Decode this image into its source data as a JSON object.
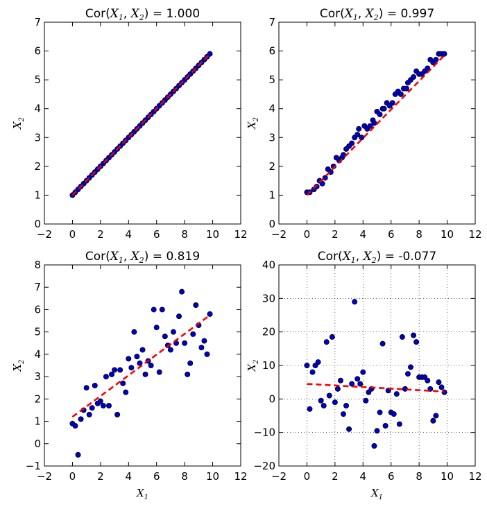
{
  "chart_data": [
    {
      "type": "scatter",
      "title_prefix": "Cor(",
      "title_var1": "X",
      "title_sub1": "1",
      "title_sep": ", ",
      "title_var2": "X",
      "title_sub2": "2",
      "title_suffix": ") = 1.000",
      "xlabel": "",
      "xlabel_sub": "",
      "ylabel": "X",
      "ylabel_sub": "2",
      "xlim": [
        -2,
        12
      ],
      "ylim": [
        0,
        7
      ],
      "xticks": [
        -2,
        0,
        2,
        4,
        6,
        8,
        10,
        12
      ],
      "yticks": [
        0,
        1,
        2,
        3,
        4,
        5,
        6,
        7
      ],
      "grid": false,
      "points": {
        "x": [
          0.0,
          0.2,
          0.4,
          0.6,
          0.8,
          1.0,
          1.2,
          1.4,
          1.6,
          1.8,
          2.0,
          2.2,
          2.4,
          2.6,
          2.8,
          3.0,
          3.2,
          3.4,
          3.6,
          3.8,
          4.0,
          4.2,
          4.4,
          4.6,
          4.8,
          5.0,
          5.2,
          5.4,
          5.6,
          5.8,
          6.0,
          6.2,
          6.4,
          6.6,
          6.8,
          7.0,
          7.2,
          7.4,
          7.6,
          7.8,
          8.0,
          8.2,
          8.4,
          8.6,
          8.8,
          9.0,
          9.2,
          9.4,
          9.6,
          9.8
        ],
        "y": [
          1.0,
          1.1,
          1.2,
          1.3,
          1.4,
          1.5,
          1.6,
          1.7,
          1.8,
          1.9,
          2.0,
          2.1,
          2.2,
          2.3,
          2.4,
          2.5,
          2.6,
          2.7,
          2.8,
          2.9,
          3.0,
          3.1,
          3.2,
          3.3,
          3.4,
          3.5,
          3.6,
          3.7,
          3.8,
          3.9,
          4.0,
          4.1,
          4.2,
          4.3,
          4.4,
          4.5,
          4.6,
          4.7,
          4.8,
          4.9,
          5.0,
          5.1,
          5.2,
          5.3,
          5.4,
          5.5,
          5.6,
          5.7,
          5.8,
          5.9
        ]
      },
      "fit_line": {
        "x": [
          0,
          9.8
        ],
        "y": [
          1.0,
          5.9
        ]
      },
      "marker_color": "#0000cc",
      "line_color": "#ff0000"
    },
    {
      "type": "scatter",
      "title_prefix": "Cor(",
      "title_var1": "X",
      "title_sub1": "1",
      "title_sep": ", ",
      "title_var2": "X",
      "title_sub2": "2",
      "title_suffix": ") = 0.997",
      "xlabel": "",
      "xlabel_sub": "",
      "ylabel": "X",
      "ylabel_sub": "2",
      "xlim": [
        -2,
        12
      ],
      "ylim": [
        0,
        7
      ],
      "xticks": [
        -2,
        0,
        2,
        4,
        6,
        8,
        10,
        12
      ],
      "yticks": [
        0,
        1,
        2,
        3,
        4,
        5,
        6,
        7
      ],
      "grid": false,
      "points": {
        "x": [
          0.0,
          0.2,
          0.5,
          0.7,
          0.9,
          1.1,
          1.3,
          1.5,
          1.7,
          1.9,
          2.1,
          2.3,
          2.5,
          2.6,
          2.8,
          3.0,
          3.2,
          3.4,
          3.6,
          3.7,
          3.9,
          4.1,
          4.3,
          4.5,
          4.7,
          4.8,
          5.0,
          5.2,
          5.4,
          5.5,
          5.7,
          5.9,
          6.1,
          6.3,
          6.5,
          6.7,
          6.9,
          7.1,
          7.2,
          7.4,
          7.6,
          7.8,
          8.0,
          8.2,
          8.4,
          8.6,
          8.8,
          9.0,
          9.2,
          9.4,
          9.6,
          9.8
        ],
        "y": [
          1.1,
          1.1,
          1.2,
          1.3,
          1.5,
          1.4,
          1.6,
          1.9,
          1.8,
          2.0,
          2.3,
          2.2,
          2.3,
          2.4,
          2.6,
          2.7,
          2.8,
          3.0,
          3.1,
          3.3,
          3.0,
          3.4,
          3.3,
          3.4,
          3.6,
          3.5,
          3.9,
          3.8,
          4.0,
          4.0,
          4.2,
          4.1,
          4.2,
          4.5,
          4.6,
          4.5,
          4.7,
          4.7,
          4.9,
          5.0,
          5.1,
          5.3,
          5.2,
          5.2,
          5.3,
          5.4,
          5.7,
          5.6,
          5.7,
          5.9,
          5.9,
          5.9
        ],
        "note": ""
      },
      "fit_line": {
        "x": [
          0,
          9.8
        ],
        "y": [
          1.0,
          5.85
        ]
      },
      "marker_color": "#0000cc",
      "line_color": "#ff0000"
    },
    {
      "type": "scatter",
      "title_prefix": "Cor(",
      "title_var1": "X",
      "title_sub1": "1",
      "title_sep": ", ",
      "title_var2": "X",
      "title_sub2": "2",
      "title_suffix": ") = 0.819",
      "xlabel": "X",
      "xlabel_sub": "1",
      "ylabel": "X",
      "ylabel_sub": "2",
      "xlim": [
        -2,
        12
      ],
      "ylim": [
        -1,
        8
      ],
      "xticks": [
        -2,
        0,
        2,
        4,
        6,
        8,
        10,
        12
      ],
      "yticks": [
        -1,
        0,
        1,
        2,
        3,
        4,
        5,
        6,
        7,
        8
      ],
      "grid": false,
      "points": {
        "x": [
          0.0,
          0.2,
          0.4,
          0.6,
          0.8,
          1.0,
          1.2,
          1.4,
          1.6,
          1.8,
          2.0,
          2.2,
          2.4,
          2.6,
          2.8,
          3.0,
          3.2,
          3.4,
          3.6,
          3.8,
          4.0,
          4.2,
          4.4,
          4.6,
          4.8,
          5.0,
          5.2,
          5.4,
          5.6,
          5.8,
          6.0,
          6.2,
          6.4,
          6.6,
          6.8,
          7.0,
          7.2,
          7.4,
          7.6,
          7.8,
          8.0,
          8.2,
          8.4,
          8.6,
          8.8,
          9.0,
          9.2,
          9.4,
          9.6,
          9.8
        ],
        "y": [
          0.9,
          0.8,
          -0.5,
          1.1,
          1.5,
          2.5,
          1.3,
          1.6,
          2.6,
          1.8,
          1.9,
          1.7,
          3.0,
          1.7,
          3.1,
          3.3,
          1.3,
          3.3,
          2.7,
          2.3,
          3.8,
          3.4,
          5.0,
          3.9,
          3.6,
          4.2,
          3.1,
          3.7,
          3.5,
          6.0,
          5.2,
          3.2,
          6.0,
          4.8,
          4.4,
          4.2,
          5.0,
          4.5,
          5.7,
          6.8,
          4.5,
          3.1,
          3.6,
          4.9,
          6.2,
          5.3,
          4.3,
          4.6,
          4.0,
          5.8
        ]
      },
      "fit_line": {
        "x": [
          0,
          9.8
        ],
        "y": [
          1.2,
          5.75
        ]
      },
      "marker_color": "#0000cc",
      "line_color": "#ff0000"
    },
    {
      "type": "scatter",
      "title_prefix": "Cor(",
      "title_var1": "X",
      "title_sub1": "1",
      "title_sep": ", ",
      "title_var2": "X",
      "title_sub2": "2",
      "title_suffix": ") = -0.077",
      "xlabel": "X",
      "xlabel_sub": "1",
      "ylabel": "X",
      "ylabel_sub": "2",
      "xlim": [
        -2,
        12
      ],
      "ylim": [
        -20,
        40
      ],
      "xticks": [
        -2,
        0,
        2,
        4,
        6,
        8,
        10,
        12
      ],
      "yticks": [
        -20,
        -10,
        0,
        10,
        20,
        30,
        40
      ],
      "grid": true,
      "points": {
        "x": [
          0.0,
          0.2,
          0.4,
          0.6,
          0.8,
          1.0,
          1.2,
          1.4,
          1.6,
          1.8,
          2.0,
          2.2,
          2.4,
          2.6,
          2.8,
          3.0,
          3.2,
          3.4,
          3.6,
          3.8,
          4.0,
          4.2,
          4.4,
          4.6,
          4.8,
          5.0,
          5.2,
          5.4,
          5.6,
          5.8,
          6.0,
          6.2,
          6.4,
          6.6,
          6.8,
          7.0,
          7.2,
          7.4,
          7.6,
          7.8,
          8.0,
          8.2,
          8.4,
          8.6,
          8.8,
          9.0,
          9.2,
          9.4,
          9.6,
          9.8
        ],
        "y": [
          10.0,
          -3.0,
          8.0,
          10.0,
          11.0,
          -0.5,
          -2.0,
          17.0,
          1.0,
          18.5,
          -1.0,
          3.0,
          5.5,
          -4.5,
          -2.0,
          -9.0,
          4.5,
          29.0,
          6.0,
          4.5,
          8.0,
          -0.5,
          2.0,
          3.0,
          -14.0,
          -9.5,
          -4.0,
          16.5,
          -8.0,
          2.5,
          -4.0,
          -4.5,
          1.5,
          -7.5,
          18.5,
          3.0,
          7.5,
          9.5,
          19.0,
          17.0,
          6.5,
          6.5,
          6.5,
          5.5,
          3.0,
          -6.5,
          -5.0,
          5.0,
          3.5,
          2.0
        ]
      },
      "fit_line": {
        "x": [
          0,
          9.8
        ],
        "y": [
          4.5,
          2.2
        ]
      },
      "marker_color": "#0000cc",
      "line_color": "#ff0000"
    }
  ]
}
